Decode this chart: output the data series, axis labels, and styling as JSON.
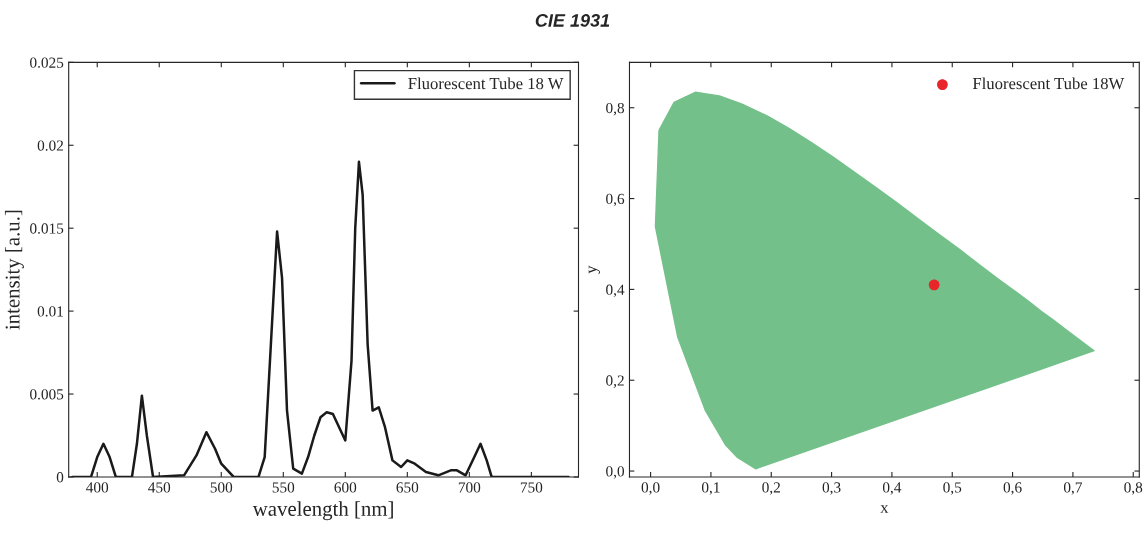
{
  "chart_data": [
    {
      "type": "line",
      "title": "CIE 1931",
      "xlabel": "wavelength [nm]",
      "ylabel": "intensity [a.u.]",
      "legend": "top right",
      "grid": false,
      "series": [
        {
          "name": "Fluorescent Tube 18 W",
          "color": "#1a1a1a",
          "x": [
            380,
            395,
            400,
            405,
            410,
            415,
            428,
            432,
            436,
            440,
            445,
            470,
            480,
            488,
            495,
            500,
            510,
            530,
            535,
            540,
            545,
            549,
            553,
            558,
            565,
            570,
            575,
            580,
            585,
            590,
            595,
            600,
            605,
            608,
            611,
            614,
            618,
            622,
            627,
            632,
            638,
            645,
            650,
            656,
            665,
            675,
            685,
            690,
            697,
            704,
            709,
            714,
            718,
            780
          ],
          "values": [
            0,
            0,
            0.0012,
            0.002,
            0.0012,
            0,
            0,
            0.002,
            0.0049,
            0.0025,
            0,
            0.0001,
            0.0013,
            0.0027,
            0.0017,
            0.0008,
            0,
            0,
            0.0012,
            0.008,
            0.0148,
            0.012,
            0.004,
            0.0005,
            0.0002,
            0.0012,
            0.0025,
            0.0036,
            0.0039,
            0.0038,
            0.003,
            0.0022,
            0.007,
            0.015,
            0.019,
            0.017,
            0.008,
            0.004,
            0.0042,
            0.003,
            0.001,
            0.0006,
            0.001,
            0.0008,
            0.0003,
            0.0001,
            0.0004,
            0.0004,
            0.0001,
            0.0012,
            0.002,
            0.001,
            0,
            0
          ]
        }
      ],
      "xlim": [
        377,
        788
      ],
      "xticks": [
        400,
        450,
        500,
        550,
        600,
        650,
        700,
        750
      ],
      "ylim": [
        0,
        0.025
      ],
      "yticks": [
        0,
        0.005,
        {
          "value": 0.01,
          "label": "0.01"
        },
        0.015,
        {
          "value": 0.02,
          "label": "0.02"
        },
        0.025
      ]
    },
    {
      "type": "scatter",
      "xlabel": "x",
      "ylabel": "y",
      "legend": "top right",
      "grid": false,
      "series": [
        {
          "type": "area",
          "color": "#74c08a",
          "x": [
            0.174,
            0.144,
            0.124,
            0.091,
            0.045,
            0.008,
            0.014,
            0.039,
            0.074,
            0.114,
            0.155,
            0.193,
            0.23,
            0.266,
            0.302,
            0.337,
            0.373,
            0.409,
            0.444,
            0.479,
            0.513,
            0.545,
            0.575,
            0.603,
            0.627,
            0.648,
            0.666,
            0.692,
            0.735,
            0.174
          ],
          "values": [
            0.005,
            0.03,
            0.058,
            0.133,
            0.295,
            0.538,
            0.75,
            0.812,
            0.834,
            0.826,
            0.806,
            0.782,
            0.754,
            0.724,
            0.692,
            0.659,
            0.625,
            0.59,
            0.555,
            0.52,
            0.487,
            0.454,
            0.424,
            0.397,
            0.373,
            0.351,
            0.334,
            0.308,
            0.265,
            0.005
          ]
        },
        {
          "type": "scatter",
          "name": "Fluorescent Tube 18W",
          "color": "#e8262a",
          "x": [
            0.47
          ],
          "values": [
            0.41
          ],
          "marker": "circle"
        }
      ],
      "xlim": [
        -0.035,
        0.81
      ],
      "xticks": [
        {
          "value": 0,
          "label": "0,0"
        },
        {
          "value": 0.1,
          "label": "0,1"
        },
        {
          "value": 0.2,
          "label": "0,2"
        },
        {
          "value": 0.3,
          "label": "0,3"
        },
        {
          "value": 0.4,
          "label": "0,4"
        },
        {
          "value": 0.5,
          "label": "0,5"
        },
        {
          "value": 0.6,
          "label": "0,6"
        },
        {
          "value": 0.7,
          "label": "0,7"
        },
        {
          "value": 0.8,
          "label": "0,8"
        }
      ],
      "ylim": [
        -0.013,
        0.9
      ],
      "yticks": [
        {
          "value": 0,
          "label": "0,0"
        },
        {
          "value": 0.2,
          "label": "0,2"
        },
        {
          "value": 0.4,
          "label": "0,4"
        },
        {
          "value": 0.6,
          "label": "0,6"
        },
        {
          "value": 0.8,
          "label": "0,8"
        }
      ]
    }
  ]
}
